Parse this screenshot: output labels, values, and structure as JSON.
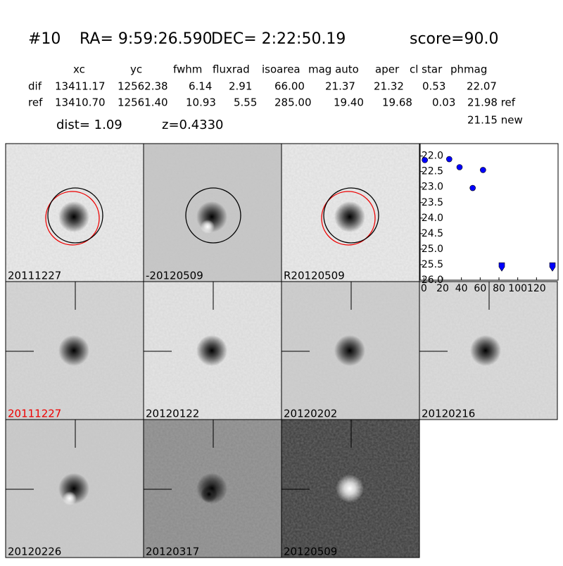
{
  "header": {
    "id": "#10",
    "ra": "RA= 9:59:26.590",
    "dec": "DEC= 2:22:50.19",
    "score": "score=90.0"
  },
  "table": {
    "columns": [
      "xc",
      "yc",
      "fwhm",
      "fluxrad",
      "isoarea",
      "mag auto",
      "aper",
      "cl star",
      "phmag"
    ],
    "rows": [
      [
        "dif",
        "13411.17",
        "12562.38",
        "6.14",
        "2.91",
        "66.00",
        "21.37",
        "21.32",
        "0.53",
        "22.07"
      ],
      [
        "ref",
        "13410.70",
        "12561.40",
        "10.93",
        "5.55",
        "285.00",
        "19.40",
        "19.68",
        "0.03",
        "21.98 ref"
      ]
    ],
    "extra": "21.15 new"
  },
  "dist": "dist=  1.09",
  "redshift": "z=0.4330",
  "stamps": [
    "20111227",
    "-20120509",
    "R20120509",
    "20111227",
    "20120122",
    "20120202",
    "20120216",
    "20120226",
    "20120317",
    "20120509"
  ],
  "chart_data": {
    "type": "scatter",
    "x": [
      1,
      27,
      38,
      52,
      63,
      83,
      137
    ],
    "series": [
      {
        "color": "#0000ff",
        "values": [
          22.13,
          22.1,
          22.36,
          23.03,
          22.45,
          25.55,
          25.55
        ],
        "markers": [
          "circle",
          "circle",
          "circle",
          "circle",
          "circle",
          "down",
          "down"
        ]
      }
    ],
    "xlim": [
      -4,
      143
    ],
    "ylim": [
      26.0,
      21.6
    ],
    "xticks": [
      0,
      20,
      40,
      60,
      80,
      100,
      120
    ],
    "yticks": [
      {
        "value": 22.0,
        "label": "22.0"
      },
      {
        "value": 22.5,
        "label": "22.5"
      },
      {
        "value": 23.0,
        "label": "23.0"
      },
      {
        "value": 23.5,
        "label": "23.5"
      },
      {
        "value": 24.0,
        "label": "24.0"
      },
      {
        "value": 24.5,
        "label": "24.5"
      },
      {
        "value": 25.0,
        "label": "25.0"
      },
      {
        "value": 25.5,
        "label": "25.5"
      },
      {
        "value": 26.0,
        "label": "26.0"
      }
    ]
  }
}
